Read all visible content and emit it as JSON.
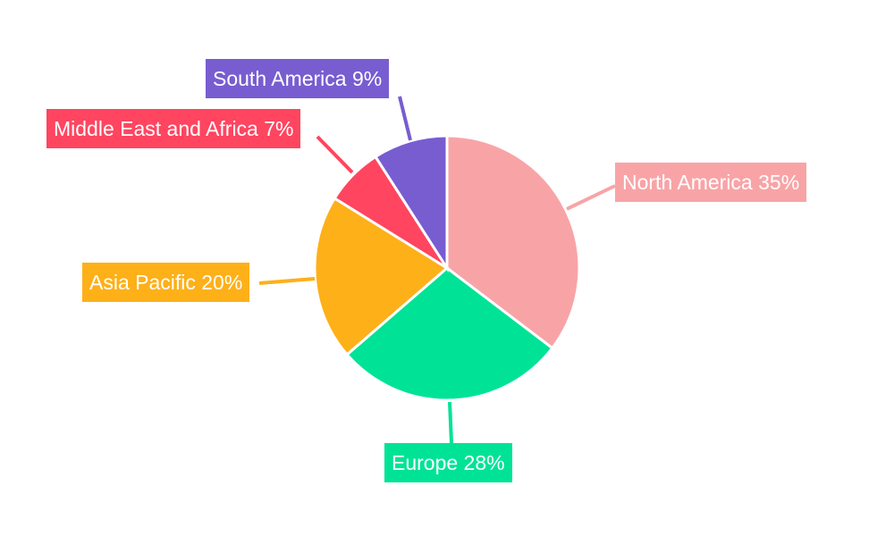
{
  "chart_data": {
    "type": "pie",
    "start": "top",
    "direction": "clockwise",
    "categories": [
      "North America",
      "Europe",
      "Asia Pacific",
      "Middle East and Africa",
      "South America"
    ],
    "values": [
      35,
      28,
      20,
      7,
      9
    ],
    "value_suffix": "%",
    "colors": [
      "#f8a4a7",
      "#00e396",
      "#feb019",
      "#ff4560",
      "#775dd0"
    ],
    "legend": "none",
    "labels": "outside with leader lines"
  }
}
